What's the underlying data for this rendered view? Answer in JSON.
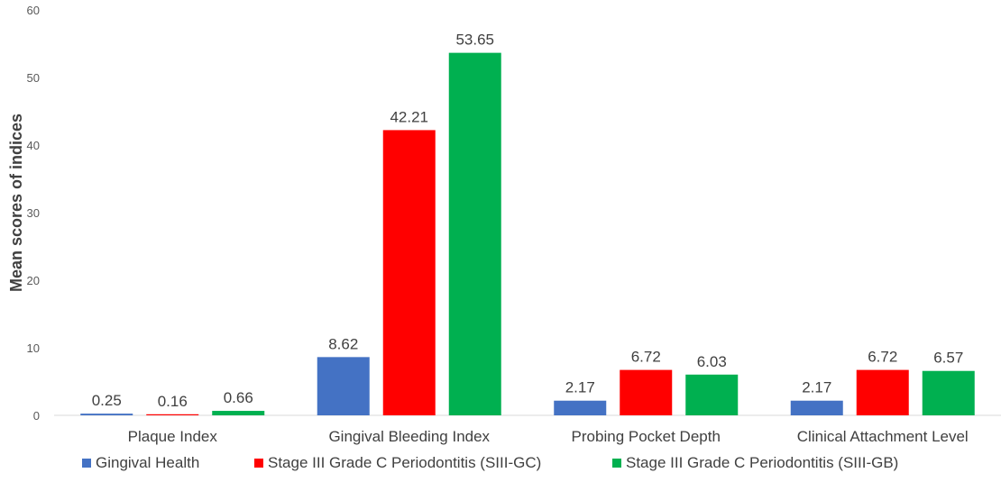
{
  "chart_data": {
    "type": "bar",
    "title": "",
    "xlabel": "",
    "ylabel": "Mean scores of indices",
    "ylim": [
      0,
      60
    ],
    "yticks": [
      0,
      10,
      20,
      30,
      40,
      50,
      60
    ],
    "grid": false,
    "legend_position": "bottom",
    "categories": [
      "Plaque Index",
      "Gingival Bleeding Index",
      "Probing Pocket Depth",
      "Clinical Attachment Level"
    ],
    "series": [
      {
        "name": "Gingival Health",
        "color": "#4472C4",
        "values": [
          0.25,
          8.62,
          2.17,
          2.17
        ]
      },
      {
        "name": "Stage III Grade C Periodontitis (SIII-GC)",
        "color": "#FF0000",
        "values": [
          0.16,
          42.21,
          6.72,
          6.72
        ]
      },
      {
        "name": "Stage III Grade C Periodontitis (SIII-GB)",
        "color": "#00B050",
        "values": [
          0.66,
          53.65,
          6.03,
          6.57
        ]
      }
    ]
  }
}
